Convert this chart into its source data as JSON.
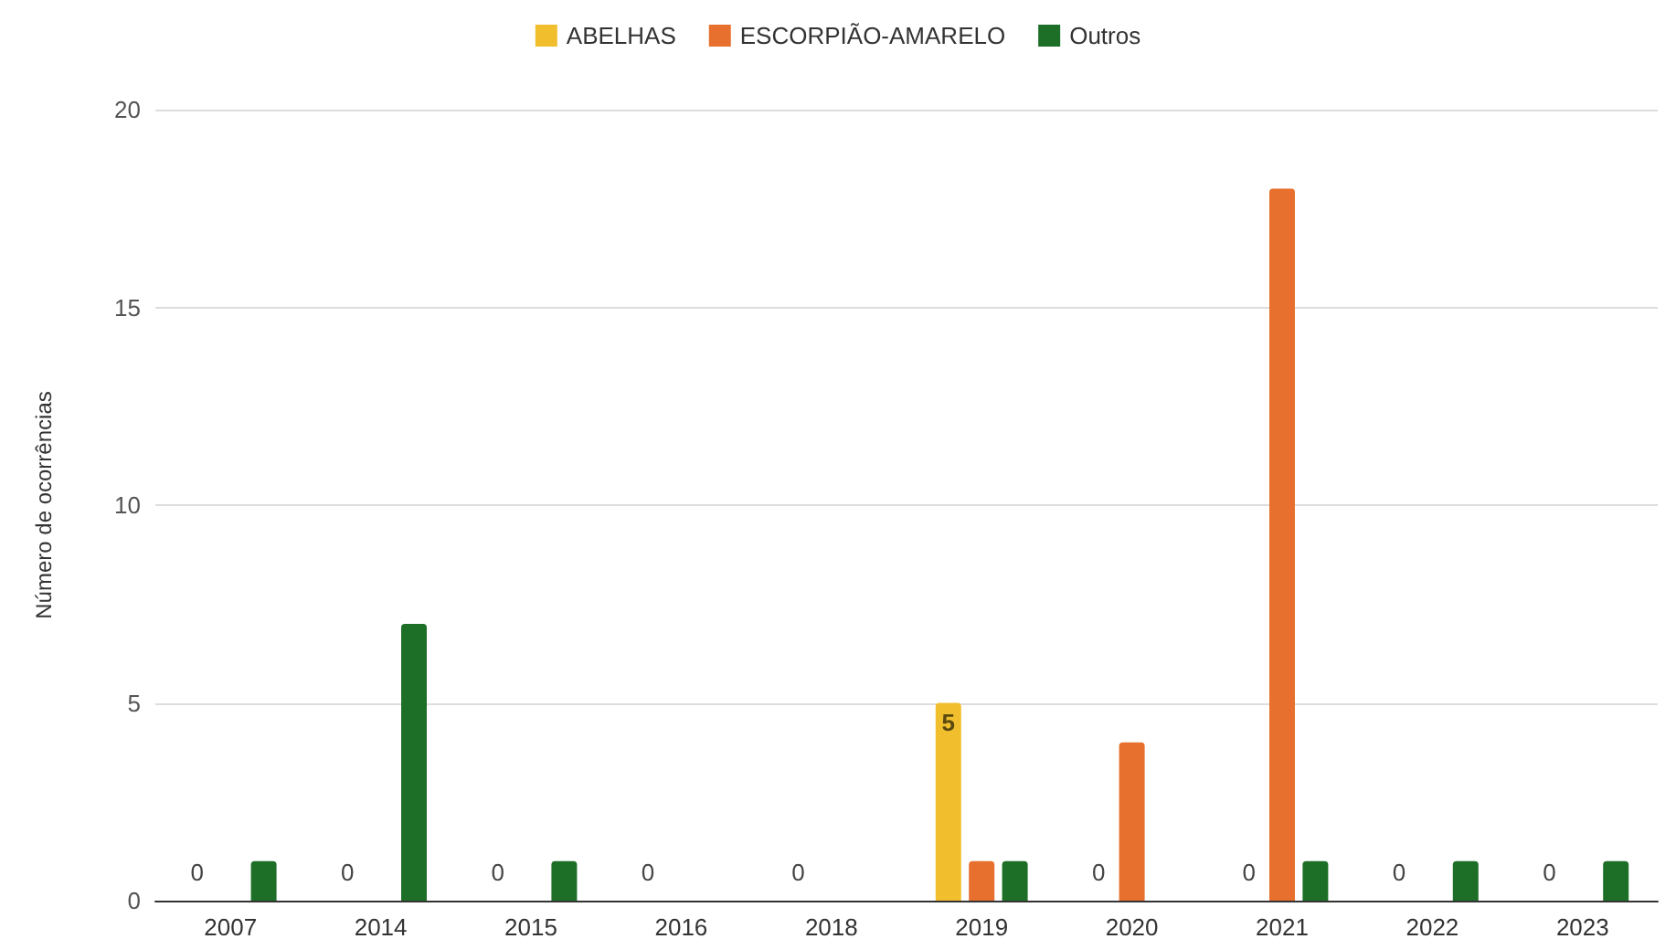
{
  "chart_data": {
    "type": "bar",
    "ylabel": "Número de ocorrências",
    "categories": [
      "2007",
      "2014",
      "2015",
      "2016",
      "2018",
      "2019",
      "2020",
      "2021",
      "2022",
      "2023"
    ],
    "series": [
      {
        "name": "ABELHAS",
        "color": "#f1bf2e",
        "values": [
          0,
          0,
          0,
          0,
          0,
          5,
          0,
          0,
          0,
          0
        ],
        "value_labels": [
          null,
          null,
          null,
          null,
          null,
          "5",
          null,
          null,
          null,
          null
        ]
      },
      {
        "name": "ESCORPIÃO-AMARELO",
        "color": "#e8702f",
        "values": [
          0,
          0,
          0,
          0,
          0,
          1,
          4,
          18,
          0,
          0
        ]
      },
      {
        "name": "Outros",
        "color": "#1d6f27",
        "values": [
          1,
          7,
          1,
          0,
          0,
          1,
          0,
          1,
          1,
          1
        ]
      }
    ],
    "ylim": [
      0,
      20
    ],
    "yticks": [
      0,
      5,
      10,
      15,
      20
    ],
    "annotations": [
      {
        "text": "0",
        "x": "2007",
        "y": 0
      },
      {
        "text": "0",
        "x": "2014",
        "y": 0
      },
      {
        "text": "0",
        "x": "2015",
        "y": 0
      },
      {
        "text": "0",
        "x": "2016",
        "y": 0
      },
      {
        "text": "0",
        "x": "2018",
        "y": 0
      },
      {
        "text": "0",
        "x": "2020",
        "y": 0
      },
      {
        "text": "0",
        "x": "2021",
        "y": 0
      },
      {
        "text": "0",
        "x": "2022",
        "y": 0
      },
      {
        "text": "0",
        "x": "2023",
        "y": 0
      }
    ],
    "grid": "y",
    "legend": "top"
  }
}
